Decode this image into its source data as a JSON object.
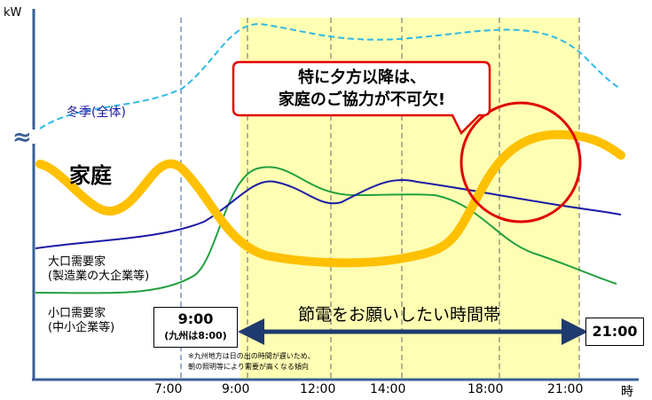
{
  "chart_data": {
    "type": "line",
    "ylabel": "kW",
    "xlabel": "時",
    "axis_break_symbol": "≈",
    "x_ticks": [
      "7:00",
      "9:00",
      "12:00",
      "14:00",
      "18:00",
      "21:00"
    ],
    "highlight_band": {
      "from": "9:00",
      "to": "21:00",
      "label": "節電をお願いしたい時間帯",
      "color": "#ffffb3"
    },
    "series": [
      {
        "name": "冬季(全体)",
        "style": "dashed",
        "color": "#2eb8e6"
      },
      {
        "name": "家庭",
        "style": "thick",
        "color": "#ffc000"
      },
      {
        "name": "大口需要家\n(製造業の大企業等)",
        "color": "#1a1aa6"
      },
      {
        "name": "小口需要家\n(中小企業等)",
        "color": "#22a040"
      }
    ],
    "annotations": {
      "callout": "特に夕方以降は、\n家庭のご協力が不可欠!",
      "callout_border_color": "#e00000",
      "circle_color": "#e00000",
      "start_box_time": "9:00",
      "start_box_note": "(九州は8:00)",
      "end_box_time": "21:00",
      "footnote": "※九州地方は日の出の時間が遅いため、\n朝の照明等により需要が高くなる傾向"
    }
  }
}
